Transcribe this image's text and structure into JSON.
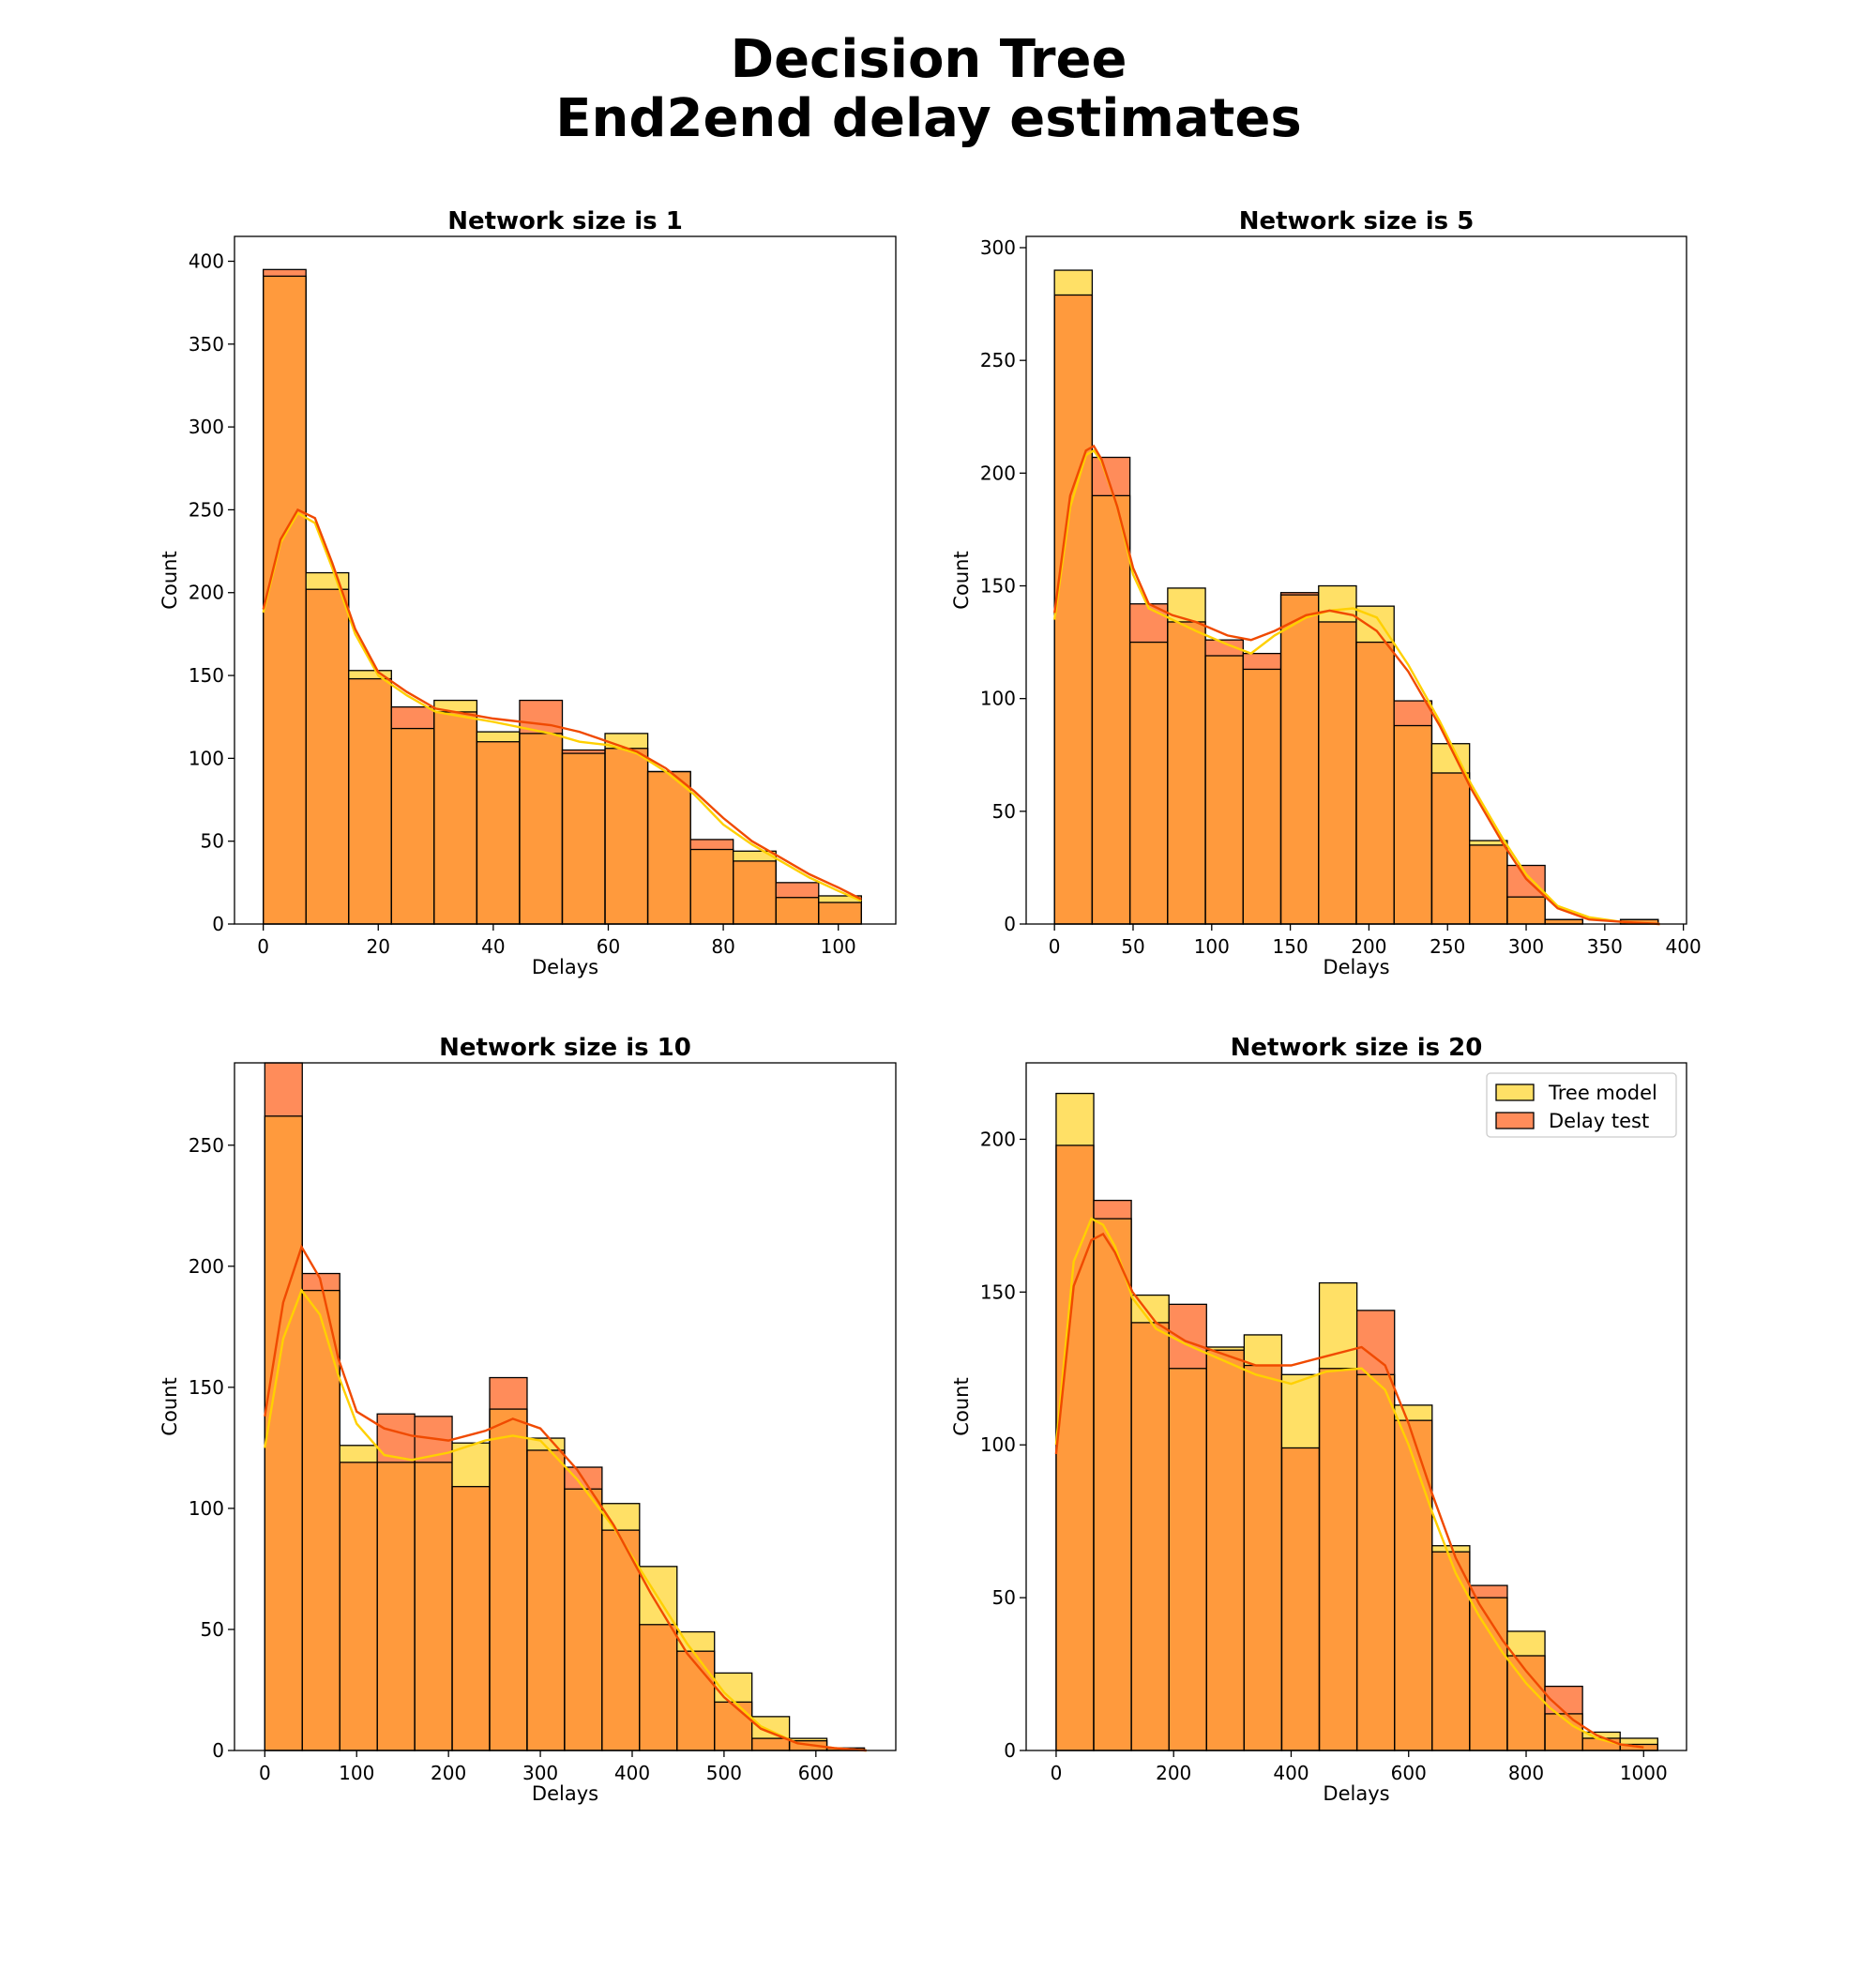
{
  "figure": {
    "title_line1": "Decision Tree",
    "title_line2": "End2end delay estimates"
  },
  "colors": {
    "tree_fill": "#FFE066",
    "test_fill": "#FF8C5A",
    "overlap_fill": "#FF9A3D",
    "tree_kde": "#FFD000",
    "test_kde": "#F04A00",
    "edge": "#000000"
  },
  "legend": {
    "tree_label": "Tree model",
    "test_label": "Delay test"
  },
  "chart_data": [
    {
      "type": "bar",
      "title": "Network size is 1",
      "xlabel": "Delays",
      "ylabel": "Count",
      "bin_start": 0,
      "bin_width": 7.43,
      "xlim": [
        -5,
        110
      ],
      "ylim": [
        0,
        415
      ],
      "xticks": [
        0,
        20,
        40,
        60,
        80,
        100
      ],
      "yticks": [
        0,
        50,
        100,
        150,
        200,
        250,
        300,
        350,
        400
      ],
      "series": [
        {
          "name": "Tree model",
          "values": [
            391,
            212,
            153,
            118,
            135,
            116,
            115,
            103,
            115,
            92,
            45,
            44,
            16,
            17
          ]
        },
        {
          "name": "Delay test",
          "values": [
            395,
            202,
            148,
            131,
            128,
            110,
            135,
            105,
            106,
            92,
            51,
            38,
            25,
            13
          ]
        }
      ],
      "kde": [
        {
          "name": "Tree model",
          "x": [
            0,
            3,
            6,
            9,
            12,
            16,
            20,
            25,
            30,
            40,
            50,
            55,
            60,
            65,
            70,
            75,
            80,
            85,
            90,
            95,
            100,
            104
          ],
          "y": [
            188,
            230,
            248,
            242,
            215,
            175,
            150,
            138,
            128,
            122,
            115,
            110,
            108,
            103,
            92,
            78,
            60,
            48,
            38,
            28,
            20,
            14
          ]
        },
        {
          "name": "Delay test",
          "x": [
            0,
            3,
            6,
            9,
            12,
            16,
            20,
            25,
            30,
            40,
            50,
            55,
            60,
            65,
            70,
            75,
            80,
            85,
            90,
            95,
            100,
            104
          ],
          "y": [
            190,
            232,
            250,
            245,
            218,
            178,
            152,
            140,
            130,
            124,
            120,
            116,
            110,
            104,
            94,
            80,
            64,
            50,
            40,
            30,
            22,
            15
          ]
        }
      ]
    },
    {
      "type": "bar",
      "title": "Network size is 5",
      "xlabel": "Delays",
      "ylabel": "Count",
      "bin_start": 0,
      "bin_width": 24,
      "xlim": [
        -18,
        402
      ],
      "ylim": [
        0,
        305
      ],
      "xticks": [
        0,
        50,
        100,
        150,
        200,
        250,
        300,
        350,
        400
      ],
      "yticks": [
        0,
        50,
        100,
        150,
        200,
        250,
        300
      ],
      "series": [
        {
          "name": "Tree model",
          "values": [
            290,
            190,
            125,
            149,
            119,
            113,
            146,
            150,
            141,
            88,
            80,
            37,
            12,
            2,
            0,
            2
          ]
        },
        {
          "name": "Delay test",
          "values": [
            279,
            207,
            142,
            134,
            126,
            120,
            147,
            134,
            125,
            99,
            67,
            35,
            26,
            2,
            0,
            2
          ]
        }
      ],
      "kde": [
        {
          "name": "Tree model",
          "x": [
            0,
            10,
            20,
            25,
            30,
            40,
            50,
            60,
            75,
            90,
            110,
            125,
            140,
            160,
            175,
            190,
            205,
            225,
            245,
            265,
            285,
            300,
            320,
            340,
            360,
            385
          ],
          "y": [
            135,
            185,
            208,
            210,
            205,
            185,
            155,
            140,
            135,
            130,
            124,
            120,
            128,
            136,
            139,
            140,
            136,
            115,
            90,
            62,
            38,
            22,
            8,
            3,
            1,
            0
          ]
        },
        {
          "name": "Delay test",
          "x": [
            0,
            10,
            20,
            25,
            30,
            40,
            50,
            60,
            75,
            90,
            110,
            125,
            140,
            160,
            175,
            190,
            205,
            225,
            245,
            265,
            285,
            300,
            320,
            340,
            360,
            385
          ],
          "y": [
            138,
            190,
            210,
            212,
            206,
            185,
            158,
            142,
            137,
            134,
            128,
            126,
            130,
            137,
            139,
            137,
            130,
            112,
            88,
            60,
            36,
            20,
            7,
            2,
            1,
            0
          ]
        }
      ]
    },
    {
      "type": "bar",
      "title": "Network size is 10",
      "xlabel": "Delays",
      "ylabel": "Count",
      "bin_start": 0,
      "bin_width": 40.8,
      "xlim": [
        -33,
        687
      ],
      "ylim": [
        0,
        284
      ],
      "xticks": [
        0,
        100,
        200,
        300,
        400,
        500,
        600
      ],
      "yticks": [
        0,
        50,
        100,
        150,
        200,
        250
      ],
      "series": [
        {
          "name": "Tree model",
          "values": [
            262,
            190,
            126,
            119,
            119,
            127,
            141,
            129,
            108,
            102,
            76,
            49,
            32,
            14,
            5,
            1
          ]
        },
        {
          "name": "Delay test",
          "values": [
            284,
            197,
            119,
            139,
            138,
            109,
            154,
            124,
            117,
            91,
            52,
            41,
            20,
            5,
            4,
            1
          ]
        }
      ],
      "kde": [
        {
          "name": "Tree model",
          "x": [
            0,
            20,
            40,
            60,
            80,
            100,
            130,
            160,
            200,
            240,
            270,
            300,
            340,
            380,
            420,
            460,
            500,
            540,
            580,
            620,
            655
          ],
          "y": [
            125,
            170,
            190,
            180,
            155,
            135,
            122,
            120,
            123,
            128,
            130,
            128,
            112,
            92,
            68,
            44,
            24,
            10,
            3,
            1,
            0
          ]
        },
        {
          "name": "Delay test",
          "x": [
            0,
            20,
            40,
            60,
            80,
            100,
            130,
            160,
            200,
            240,
            270,
            300,
            340,
            380,
            420,
            460,
            500,
            540,
            580,
            620,
            655
          ],
          "y": [
            138,
            185,
            208,
            195,
            162,
            140,
            133,
            130,
            128,
            132,
            137,
            133,
            116,
            93,
            65,
            40,
            22,
            9,
            3,
            1,
            0
          ]
        }
      ]
    },
    {
      "type": "bar",
      "title": "Network size is 20",
      "xlabel": "Delays",
      "ylabel": "Count",
      "bin_start": 0,
      "bin_width": 64,
      "xlim": [
        -51,
        1073
      ],
      "ylim": [
        0,
        225
      ],
      "xticks": [
        0,
        200,
        400,
        600,
        800,
        1000
      ],
      "yticks": [
        0,
        50,
        100,
        150,
        200
      ],
      "series": [
        {
          "name": "Tree model",
          "values": [
            215,
            174,
            149,
            125,
            132,
            136,
            123,
            153,
            123,
            113,
            67,
            50,
            39,
            12,
            6,
            4
          ]
        },
        {
          "name": "Delay test",
          "values": [
            198,
            180,
            140,
            146,
            131,
            126,
            99,
            125,
            144,
            108,
            65,
            54,
            31,
            21,
            4,
            2
          ]
        }
      ],
      "kde": [
        {
          "name": "Tree model",
          "x": [
            0,
            30,
            60,
            80,
            100,
            130,
            170,
            220,
            280,
            340,
            400,
            460,
            520,
            560,
            600,
            640,
            680,
            720,
            760,
            800,
            840,
            880,
            920,
            960,
            1000
          ],
          "y": [
            100,
            160,
            174,
            172,
            165,
            148,
            138,
            133,
            128,
            123,
            120,
            124,
            125,
            118,
            100,
            78,
            58,
            44,
            32,
            22,
            14,
            8,
            4,
            2,
            1
          ]
        },
        {
          "name": "Delay test",
          "x": [
            0,
            30,
            60,
            80,
            100,
            130,
            170,
            220,
            280,
            340,
            400,
            460,
            520,
            560,
            600,
            640,
            680,
            720,
            760,
            800,
            840,
            880,
            920,
            960,
            1000
          ],
          "y": [
            97,
            152,
            167,
            169,
            163,
            150,
            140,
            134,
            130,
            126,
            126,
            129,
            132,
            126,
            107,
            84,
            63,
            48,
            36,
            26,
            17,
            10,
            5,
            2,
            1
          ]
        }
      ]
    }
  ]
}
